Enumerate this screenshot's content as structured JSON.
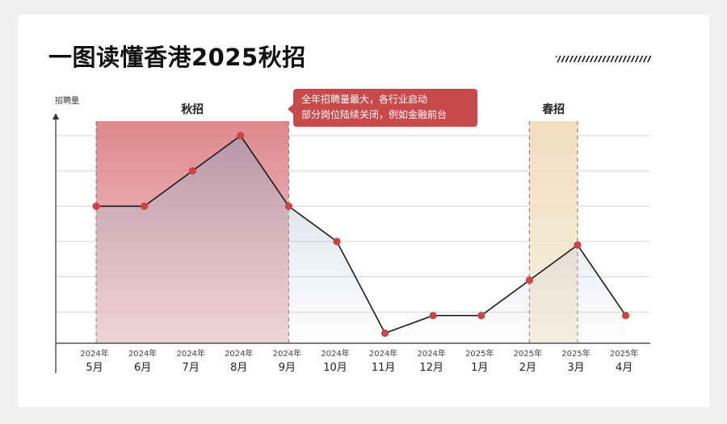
{
  "page": {
    "title": "一图读懂香港2025秋招",
    "callout_lines": [
      "全年招聘量最大，各行业启动",
      "部分岗位陆续关闭，例如金融前台"
    ]
  },
  "chart_data": {
    "type": "line",
    "ylabel": "招聘量",
    "categories": [
      {
        "year": "2024年",
        "month": "5月"
      },
      {
        "year": "2024年",
        "month": "6月"
      },
      {
        "year": "2024年",
        "month": "7月"
      },
      {
        "year": "2024年",
        "month": "8月"
      },
      {
        "year": "2024年",
        "month": "9月"
      },
      {
        "year": "2024年",
        "month": "10月"
      },
      {
        "year": "2024年",
        "month": "11月"
      },
      {
        "year": "2024年",
        "month": "12月"
      },
      {
        "year": "2025年",
        "month": "1月"
      },
      {
        "year": "2025年",
        "month": "2月"
      },
      {
        "year": "2025年",
        "month": "3月"
      },
      {
        "year": "2025年",
        "month": "4月"
      }
    ],
    "values": [
      4,
      4,
      5,
      6,
      4,
      3,
      0.4,
      0.9,
      0.9,
      1.9,
      2.9,
      0.9
    ],
    "ylim": [
      0,
      6
    ],
    "grid": true,
    "bands": [
      {
        "label": "秋招",
        "from": 0,
        "to": 4,
        "color": "#d9767a"
      },
      {
        "label": "春招",
        "from": 9,
        "to": 10,
        "color": "#efd9b6"
      }
    ],
    "line_color": "#1a1a1a",
    "point_color": "#c94545"
  }
}
